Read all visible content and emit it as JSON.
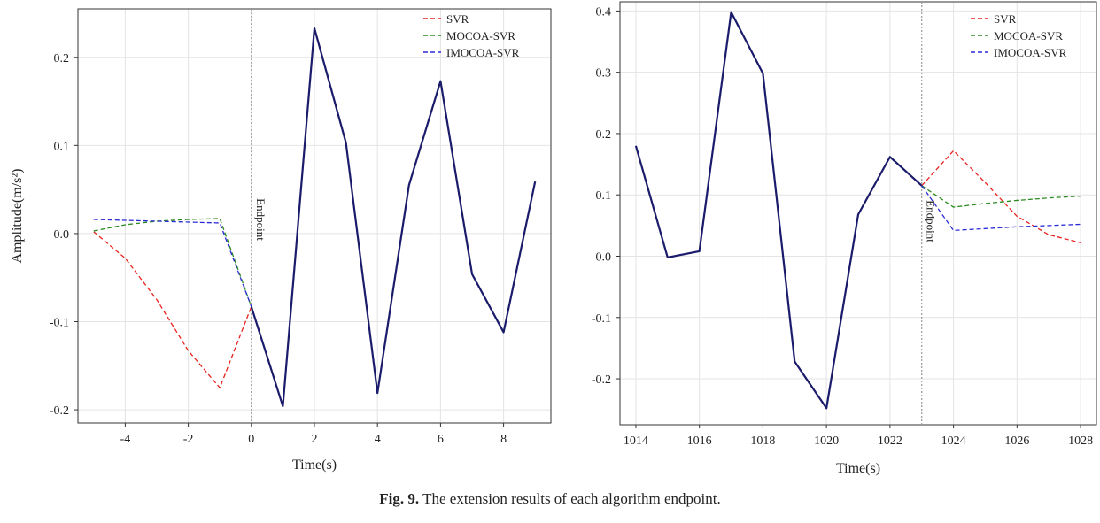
{
  "caption": {
    "label": "Fig. 9.",
    "text": "The extension results of each algorithm endpoint."
  },
  "colors": {
    "SVR": "#e8231e",
    "MOCOA-SVR": "#2a8a1f",
    "IMOCOA-SVR": "#2b2bd6",
    "observed": "#1b1b6b",
    "grid": "#e4e4e4",
    "endpoint": "#999999"
  },
  "chart_data": [
    {
      "type": "line",
      "title": "",
      "xlabel": "Time(s)",
      "ylabel": "Amplitude(m/s²)",
      "xlim": [
        -5.5,
        9.5
      ],
      "ylim": [
        -0.215,
        0.255
      ],
      "xticks": [
        -4,
        -2,
        0,
        2,
        4,
        6,
        8
      ],
      "xtick_labels": [
        "-4",
        "-2",
        "0",
        "2",
        "4",
        "6",
        "8"
      ],
      "yticks": [
        -0.2,
        -0.1,
        0.0,
        0.1,
        0.2
      ],
      "ytick_labels": [
        "-0.2",
        "-0.1",
        "0.0",
        "0.1",
        "0.2"
      ],
      "grid": true,
      "legend_position": "top-right",
      "endpoint": {
        "x": 0,
        "label": "Endpoint"
      },
      "observed": {
        "x": [
          0,
          1,
          2,
          3,
          4,
          5,
          6,
          7,
          8,
          9
        ],
        "y": [
          -0.083,
          -0.196,
          0.233,
          0.103,
          -0.181,
          0.055,
          0.173,
          -0.046,
          -0.112,
          0.059
        ]
      },
      "series": [
        {
          "name": "SVR",
          "x": [
            -5,
            -4,
            -3,
            -2,
            -1,
            0
          ],
          "y": [
            0.002,
            -0.028,
            -0.075,
            -0.133,
            -0.175,
            -0.083
          ]
        },
        {
          "name": "MOCOA-SVR",
          "x": [
            -5,
            -4,
            -3,
            -2,
            -1,
            0
          ],
          "y": [
            0.003,
            0.01,
            0.014,
            0.016,
            0.017,
            -0.083
          ]
        },
        {
          "name": "IMOCOA-SVR",
          "x": [
            -5,
            -4,
            -3,
            -2,
            -1,
            0
          ],
          "y": [
            0.016,
            0.015,
            0.014,
            0.013,
            0.012,
            -0.083
          ]
        }
      ]
    },
    {
      "type": "line",
      "title": "",
      "xlabel": "Time(s)",
      "ylabel": "",
      "xlim": [
        1013.5,
        1028.5
      ],
      "ylim": [
        -0.275,
        0.415
      ],
      "xticks": [
        1014,
        1016,
        1018,
        1020,
        1022,
        1024,
        1026,
        1028
      ],
      "xtick_labels": [
        "1014",
        "1016",
        "1018",
        "1020",
        "1022",
        "1024",
        "1026",
        "1028"
      ],
      "yticks": [
        -0.2,
        -0.1,
        0.0,
        0.1,
        0.2,
        0.3,
        0.4
      ],
      "ytick_labels": [
        "-0.2",
        "-0.1",
        "0.0",
        "0.1",
        "0.2",
        "0.3",
        "0.4"
      ],
      "grid": true,
      "legend_position": "top-right",
      "endpoint": {
        "x": 1023,
        "label": "Endpoint"
      },
      "observed": {
        "x": [
          1014,
          1015,
          1016,
          1017,
          1018,
          1019,
          1020,
          1021,
          1022,
          1023
        ],
        "y": [
          0.18,
          -0.002,
          0.008,
          0.398,
          0.298,
          -0.172,
          -0.248,
          0.068,
          0.162,
          0.115
        ]
      },
      "series": [
        {
          "name": "SVR",
          "x": [
            1023,
            1024,
            1025,
            1026,
            1027,
            1028
          ],
          "y": [
            0.115,
            0.172,
            0.12,
            0.065,
            0.035,
            0.022
          ]
        },
        {
          "name": "MOCOA-SVR",
          "x": [
            1023,
            1024,
            1025,
            1026,
            1027,
            1028
          ],
          "y": [
            0.115,
            0.08,
            0.086,
            0.091,
            0.095,
            0.098
          ]
        },
        {
          "name": "IMOCOA-SVR",
          "x": [
            1023,
            1024,
            1025,
            1026,
            1027,
            1028
          ],
          "y": [
            0.115,
            0.042,
            0.045,
            0.048,
            0.05,
            0.052
          ]
        }
      ]
    }
  ]
}
